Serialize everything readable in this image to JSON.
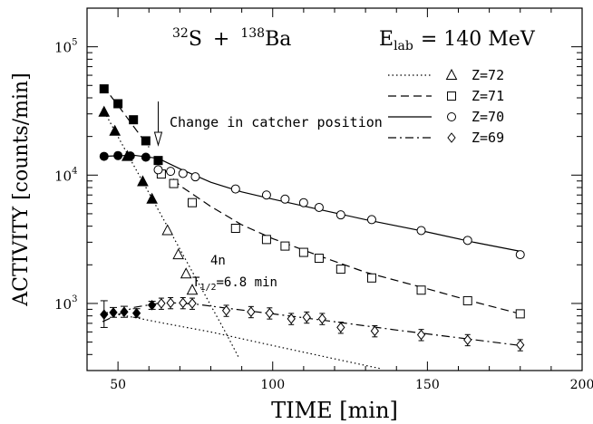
{
  "chart_data": {
    "type": "scatter",
    "title_parts": {
      "mass1": "32",
      "elem1": "S",
      "plus": "+",
      "mass2": "138",
      "elem2": "Ba",
      "energy_prefix": "E",
      "energy_sub": "lab",
      "energy_value": "= 140 MeV"
    },
    "xlabel": "TIME [min]",
    "ylabel": "ACTIVITY [counts/min]",
    "xlim": [
      40,
      200
    ],
    "ylim": [
      300,
      200000
    ],
    "y_scale": "log",
    "x_ticks": [
      50,
      100,
      150,
      200
    ],
    "x_tick_labels": [
      "50",
      "100",
      "150",
      "200"
    ],
    "y_ticks": [
      1000,
      10000,
      100000
    ],
    "y_tick_labels": [
      {
        "base": "10",
        "exp": "3"
      },
      {
        "base": "10",
        "exp": "4"
      },
      {
        "base": "10",
        "exp": "5"
      }
    ],
    "legend_placement": "top-right",
    "annotations": {
      "catcher": "Change in catcher position",
      "catcher_time": 63,
      "channel": "4n",
      "halflife_prefix": "T",
      "halflife_sub": "1/2",
      "halflife_value": "=6.8 min"
    },
    "series": [
      {
        "name": "Z=72",
        "marker": "triangle",
        "line": "dotted",
        "filled_points": [
          [
            45.5,
            31000
          ],
          [
            49,
            22000
          ],
          [
            53,
            14000
          ],
          [
            58,
            8900
          ],
          [
            61,
            6500
          ]
        ],
        "open_points": [
          [
            66,
            3700
          ],
          [
            69.5,
            2400
          ],
          [
            72,
            1700
          ],
          [
            74,
            1270
          ]
        ],
        "fit": [
          [
            45,
            33000
          ],
          [
            55,
            12000
          ],
          [
            65,
            4400
          ],
          [
            75,
            1600
          ],
          [
            85,
            580
          ],
          [
            89,
            380
          ]
        ]
      },
      {
        "name": "Z=71",
        "marker": "square",
        "line": "dashed",
        "filled_points": [
          [
            45.5,
            47000
          ],
          [
            50,
            36000
          ],
          [
            55,
            27000
          ],
          [
            59,
            18500
          ],
          [
            63,
            13000
          ]
        ],
        "open_points": [
          [
            64,
            10200
          ],
          [
            68,
            8600
          ],
          [
            74,
            6100
          ],
          [
            88,
            3850
          ],
          [
            98,
            3150
          ],
          [
            104,
            2800
          ],
          [
            110,
            2500
          ],
          [
            115,
            2250
          ],
          [
            122,
            1850
          ],
          [
            132,
            1580
          ],
          [
            148,
            1270
          ],
          [
            163,
            1050
          ],
          [
            180,
            830
          ]
        ],
        "fit": [
          [
            45,
            50000
          ],
          [
            50,
            35000
          ],
          [
            55,
            24000
          ],
          [
            60,
            16500
          ],
          [
            65,
            11000
          ],
          [
            70,
            8300
          ],
          [
            80,
            5700
          ],
          [
            90,
            4100
          ],
          [
            100,
            3200
          ],
          [
            115,
            2350
          ],
          [
            130,
            1750
          ],
          [
            150,
            1300
          ],
          [
            165,
            1030
          ],
          [
            180,
            830
          ]
        ],
        "segment_break": 63
      },
      {
        "name": "Z=70",
        "marker": "circle",
        "line": "solid",
        "filled_points": [
          [
            45.5,
            14000
          ],
          [
            50,
            14200
          ],
          [
            54,
            14100
          ],
          [
            59,
            13800
          ]
        ],
        "open_points": [
          [
            63,
            11000
          ],
          [
            67,
            10700
          ],
          [
            71,
            10300
          ],
          [
            75,
            9700
          ],
          [
            88,
            7800
          ],
          [
            98,
            7000
          ],
          [
            104,
            6500
          ],
          [
            110,
            6100
          ],
          [
            115,
            5600
          ],
          [
            122,
            4900
          ],
          [
            132,
            4500
          ],
          [
            148,
            3700
          ],
          [
            163,
            3100
          ],
          [
            180,
            2400
          ]
        ],
        "fit": [
          [
            45,
            14000
          ],
          [
            55,
            14300
          ],
          [
            63,
            13500
          ],
          [
            70,
            11200
          ],
          [
            80,
            8800
          ],
          [
            90,
            7400
          ],
          [
            100,
            6500
          ],
          [
            115,
            5400
          ],
          [
            130,
            4500
          ],
          [
            150,
            3600
          ],
          [
            165,
            3000
          ],
          [
            180,
            2550
          ]
        ],
        "segment_break": 63
      },
      {
        "name": "Z=69",
        "marker": "diamond",
        "line": "dashdot",
        "filled_points": [
          [
            45.5,
            820,
            650,
            1050
          ],
          [
            48.5,
            850,
            780,
            930
          ],
          [
            52,
            860,
            780,
            950
          ],
          [
            56,
            840,
            780,
            910
          ],
          [
            61,
            970,
            900,
            1040
          ]
        ],
        "open_points": [
          [
            64,
            1000
          ],
          [
            67,
            1010
          ],
          [
            71,
            1010
          ],
          [
            74,
            1000
          ],
          [
            85,
            880
          ],
          [
            93,
            860
          ],
          [
            99,
            840
          ],
          [
            106,
            760
          ],
          [
            111,
            780
          ],
          [
            116,
            760
          ],
          [
            122,
            650
          ],
          [
            133,
            610
          ],
          [
            148,
            570
          ],
          [
            163,
            520
          ],
          [
            180,
            475
          ]
        ],
        "fit_growth": [
          [
            45,
            720
          ],
          [
            55,
            930
          ],
          [
            65,
            1020
          ],
          [
            75,
            990
          ],
          [
            85,
            920
          ],
          [
            100,
            830
          ],
          [
            120,
            720
          ],
          [
            140,
            620
          ],
          [
            160,
            540
          ],
          [
            180,
            470
          ]
        ],
        "fit_decay": [
          [
            45,
            860
          ],
          [
            55,
            780
          ],
          [
            65,
            700
          ],
          [
            80,
            600
          ],
          [
            100,
            470
          ],
          [
            120,
            370
          ],
          [
            135,
            310
          ]
        ]
      }
    ]
  }
}
